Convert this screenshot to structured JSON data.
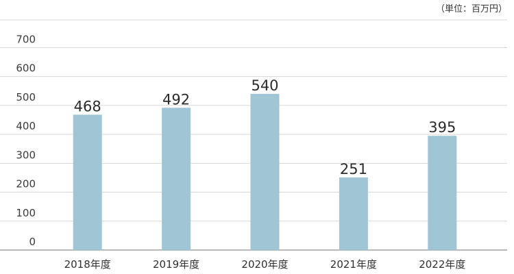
{
  "chart_data": {
    "type": "bar",
    "unit_note": "（単位：百万円）",
    "categories": [
      "2018年度",
      "2019年度",
      "2020年度",
      "2021年度",
      "2022年度"
    ],
    "values": [
      468,
      492,
      540,
      251,
      395
    ],
    "value_labels": [
      "468",
      "492",
      "540",
      "251",
      "395"
    ],
    "yticks": [
      0,
      100,
      200,
      300,
      400,
      500,
      600,
      700
    ],
    "ylim": [
      0,
      800
    ],
    "grid": true,
    "legend": "none",
    "bar_color": "#a0c6d6"
  }
}
